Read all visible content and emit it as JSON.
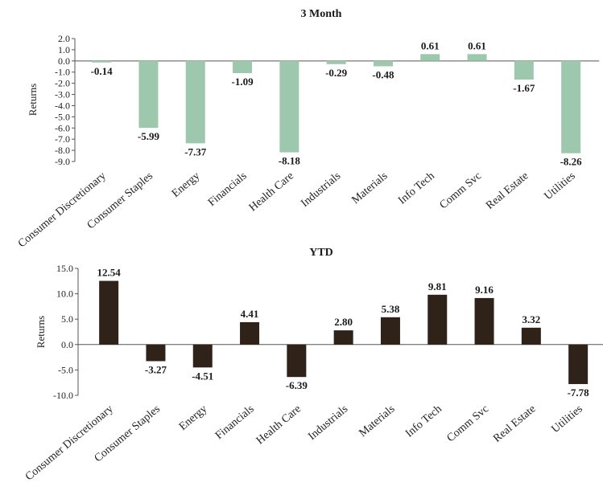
{
  "chart_data": [
    {
      "type": "bar",
      "title": "3 Month",
      "ylabel": "Returns",
      "xlabel": "",
      "ylim": [
        -9.0,
        2.0
      ],
      "ytick_step": 1.0,
      "ytick_labels": [
        "2.0",
        "1.0",
        "0.0",
        "-1.0",
        "-2.0",
        "-3.0",
        "-4.0",
        "-5.0",
        "-6.0",
        "-7.0",
        "-8.0",
        "-9.0"
      ],
      "bar_color": "#9dc8ae",
      "categories": [
        "Consumer Discretionary",
        "Consumer Staples",
        "Energy",
        "Financials",
        "Health Care",
        "Industrials",
        "Materials",
        "Info Tech",
        "Comm Svc",
        "Real Estate",
        "Utilities"
      ],
      "values": [
        -0.14,
        -5.99,
        -7.37,
        -1.09,
        -8.18,
        -0.29,
        -0.48,
        0.61,
        0.61,
        -1.67,
        -8.26
      ],
      "data_labels": [
        "-0.14",
        "-5.99",
        "-7.37",
        "-1.09",
        "-8.18",
        "-0.29",
        "-0.48",
        "0.61",
        "0.61",
        "-1.67",
        "-8.26"
      ],
      "grid": false
    },
    {
      "type": "bar",
      "title": "YTD",
      "ylabel": "Returns",
      "xlabel": "",
      "ylim": [
        -10.0,
        15.0
      ],
      "ytick_step": 5.0,
      "ytick_labels": [
        "15.0",
        "10.0",
        "5.0",
        "0.0",
        "-5.0",
        "-10.0"
      ],
      "bar_color": "#2f2219",
      "categories": [
        "Consumer Discretionary",
        "Consumer Staples",
        "Energy",
        "Financials",
        "Health Care",
        "Industrials",
        "Materials",
        "Info Tech",
        "Comm Svc",
        "Real Estate",
        "Utilities"
      ],
      "values": [
        12.54,
        -3.27,
        -4.51,
        4.41,
        -6.39,
        2.8,
        5.38,
        9.81,
        9.16,
        3.32,
        -7.78
      ],
      "data_labels": [
        "12.54",
        "-3.27",
        "-4.51",
        "4.41",
        "-6.39",
        "2.80",
        "5.38",
        "9.81",
        "9.16",
        "3.32",
        "-7.78"
      ],
      "grid": false
    }
  ]
}
